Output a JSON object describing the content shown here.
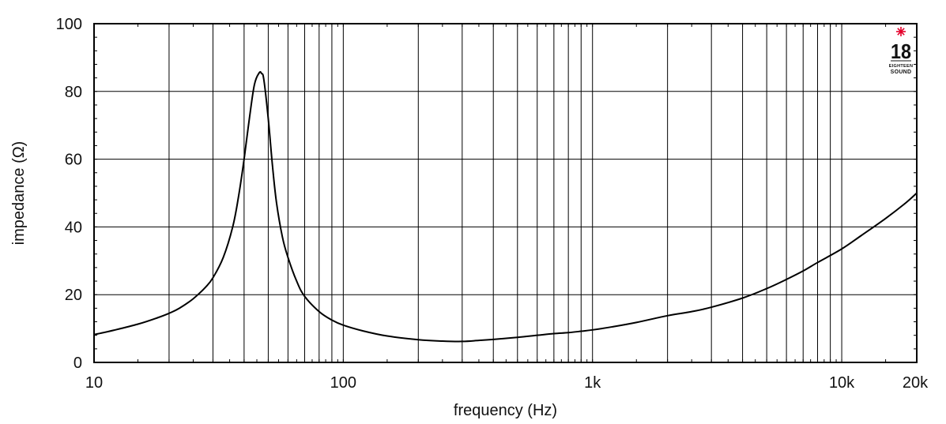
{
  "chart_data": {
    "type": "line",
    "xlabel": "frequency (Hz)",
    "ylabel": "impedance (Ω)",
    "x_scale": "log",
    "xlim": [
      10,
      20000
    ],
    "ylim": [
      0,
      100
    ],
    "grid": true,
    "x_tick_labels": [
      {
        "value": 10,
        "label": "10"
      },
      {
        "value": 100,
        "label": "100"
      },
      {
        "value": 1000,
        "label": "1k"
      },
      {
        "value": 10000,
        "label": "10k"
      },
      {
        "value": 20000,
        "label": "20k"
      }
    ],
    "y_ticks": [
      0,
      20,
      40,
      60,
      80,
      100
    ],
    "line_color": "#000000",
    "series": [
      {
        "x": [
          10,
          12,
          15,
          18,
          20,
          22,
          25,
          28,
          30,
          33,
          36,
          38,
          40,
          42,
          44,
          46,
          47,
          48,
          50,
          52,
          54,
          57,
          60,
          65,
          70,
          80,
          90,
          100,
          120,
          150,
          200,
          250,
          300,
          350,
          400,
          500,
          600,
          700,
          800,
          900,
          1000,
          1200,
          1500,
          2000,
          2500,
          3000,
          4000,
          5000,
          6000,
          7000,
          8000,
          10000,
          12000,
          15000,
          18000,
          20000
        ],
        "y": [
          8.2,
          9.5,
          11.3,
          13.2,
          14.5,
          16.0,
          18.8,
          22.2,
          25.0,
          31.0,
          40.0,
          49.0,
          60.0,
          72.0,
          82.0,
          85.5,
          85.3,
          83.5,
          72.0,
          58.0,
          47.0,
          37.0,
          31.0,
          24.0,
          19.5,
          15.0,
          12.5,
          11.0,
          9.3,
          7.8,
          6.7,
          6.3,
          6.2,
          6.5,
          6.8,
          7.4,
          8.0,
          8.5,
          8.8,
          9.2,
          9.6,
          10.5,
          11.8,
          13.8,
          15.0,
          16.3,
          19.0,
          21.8,
          24.5,
          27.0,
          29.5,
          33.5,
          37.5,
          42.5,
          47.0,
          50.0
        ]
      }
    ]
  },
  "logo": {
    "text_big": "18",
    "text_small_1": "EIGHTEEN",
    "text_small_2": "SOUND",
    "star_color": "#e4002b"
  }
}
